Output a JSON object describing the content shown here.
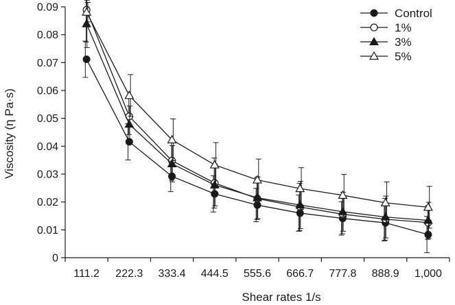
{
  "chart_data": {
    "type": "line",
    "xlabel": "Shear rates 1/s",
    "ylabel": "Viscosity (η Pa·s)",
    "categories": [
      "111.2",
      "222.3",
      "333.4",
      "444.5",
      "555.6",
      "666.7",
      "777.8",
      "888.9",
      "1,000"
    ],
    "ylim": [
      0,
      0.09
    ],
    "yticks": [
      "0",
      "0.01",
      "0.02",
      "0.03",
      "0.04",
      "0.05",
      "0.06",
      "0.07",
      "0.08",
      "0.09"
    ],
    "grid": false,
    "legend": "top-right",
    "series": [
      {
        "name": "Control",
        "marker": "filled-circle",
        "values": [
          0.0712,
          0.0416,
          0.0292,
          0.0229,
          0.0189,
          0.016,
          0.0141,
          0.0125,
          0.0083
        ],
        "errors": [
          0.0065,
          0.0065,
          0.0055,
          0.0065,
          0.006,
          0.0065,
          0.006,
          0.0065,
          0.0065
        ]
      },
      {
        "name": "1%",
        "marker": "open-circle",
        "values": [
          0.0889,
          0.0507,
          0.0348,
          0.0268,
          0.0212,
          0.0182,
          0.0156,
          0.0138,
          0.0126
        ],
        "errors": [
          0.0115,
          0.0065,
          0.007,
          0.009,
          0.0075,
          0.0085,
          0.007,
          0.0075,
          0.006
        ]
      },
      {
        "name": "3%",
        "marker": "filled-triangle",
        "values": [
          0.0839,
          0.0479,
          0.0337,
          0.0261,
          0.0215,
          0.0189,
          0.0165,
          0.0146,
          0.0134
        ],
        "errors": [
          0.0085,
          0.0065,
          0.0065,
          0.0075,
          0.0075,
          0.0085,
          0.007,
          0.0075,
          0.0065
        ]
      },
      {
        "name": "5%",
        "marker": "open-triangle",
        "values": [
          0.0881,
          0.0582,
          0.0423,
          0.0333,
          0.0279,
          0.0248,
          0.0224,
          0.0197,
          0.0181
        ],
        "errors": [
          0.0035,
          0.0075,
          0.0075,
          0.008,
          0.0075,
          0.0075,
          0.0075,
          0.0075,
          0.0075
        ]
      }
    ]
  }
}
